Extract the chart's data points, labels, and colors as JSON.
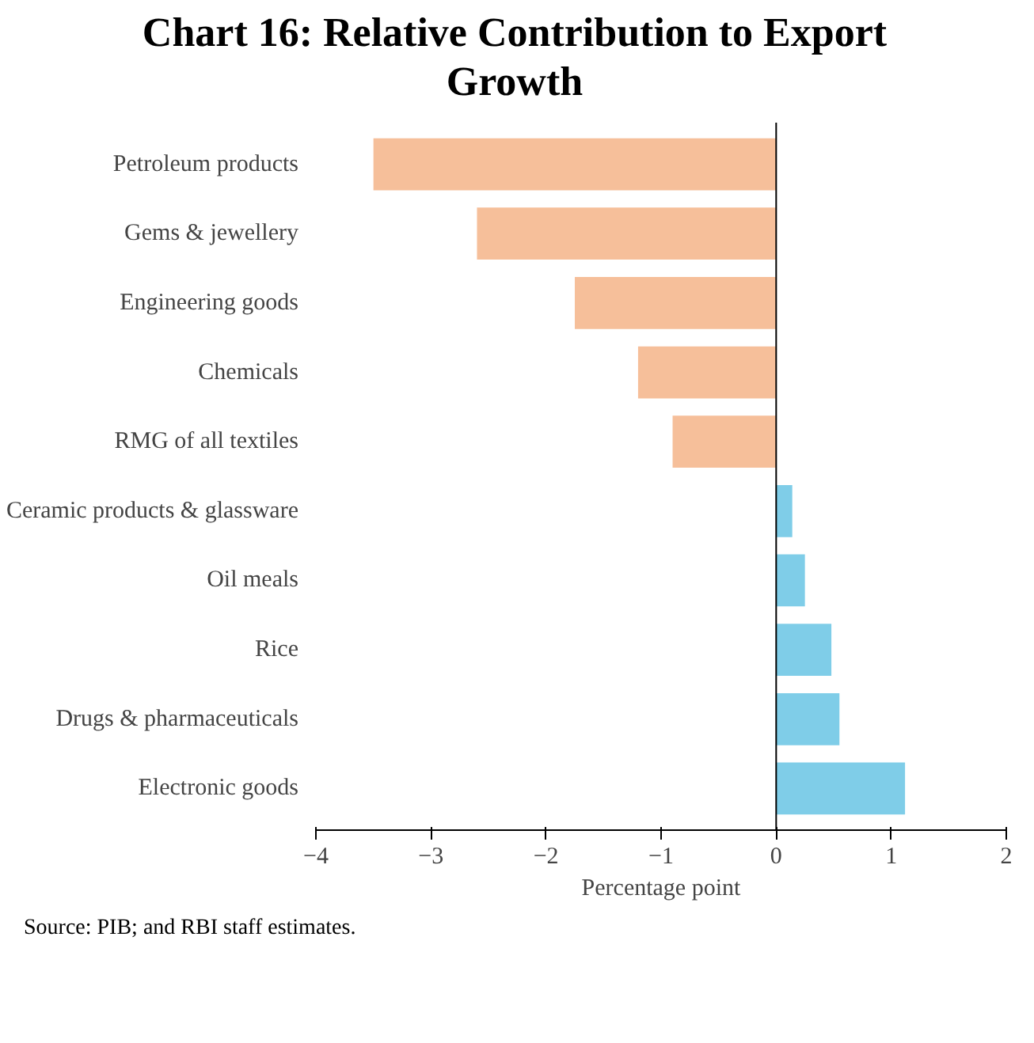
{
  "chart_data": {
    "type": "bar",
    "orientation": "horizontal",
    "title": "Chart 16: Relative Contribution to Export Growth",
    "xlabel": "Percentage point",
    "categories": [
      "Petroleum products",
      "Gems & jewellery",
      "Engineering goods",
      "Chemicals",
      "RMG of all textiles",
      "Ceramic products & glassware",
      "Oil meals",
      "Rice",
      "Drugs & pharmaceuticals",
      "Electronic goods"
    ],
    "values": [
      -3.5,
      -2.6,
      -1.75,
      -1.2,
      -0.9,
      0.14,
      0.25,
      0.48,
      0.55,
      1.12
    ],
    "colors": [
      "#f6bf9a",
      "#f6bf9a",
      "#f6bf9a",
      "#f6bf9a",
      "#f6bf9a",
      "#7fcde8",
      "#7fcde8",
      "#7fcde8",
      "#7fcde8",
      "#7fcde8"
    ],
    "xlim": [
      -4,
      2
    ],
    "xticks": [
      -4,
      -3,
      -2,
      -1,
      0,
      1,
      2
    ],
    "annotations": [
      "Source: PIB; and RBI staff estimates."
    ]
  }
}
